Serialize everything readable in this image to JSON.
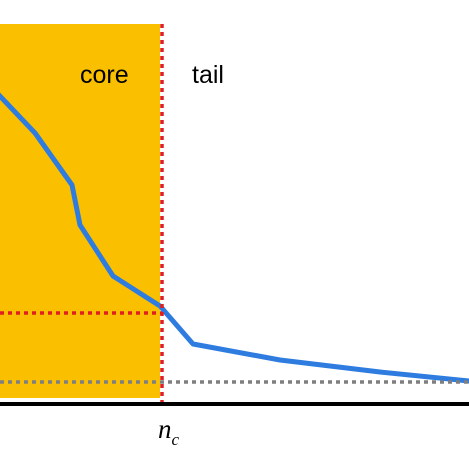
{
  "regions": {
    "core_label": "core",
    "tail_label": "tail"
  },
  "threshold": {
    "symbol": "n",
    "subscript": "c"
  },
  "colors": {
    "core_fill": "#FAC000",
    "curve": "#2E7CE0",
    "threshold_line": "#E02020",
    "baseline_dotted": "#7F7F7F",
    "axis": "#000000"
  }
}
